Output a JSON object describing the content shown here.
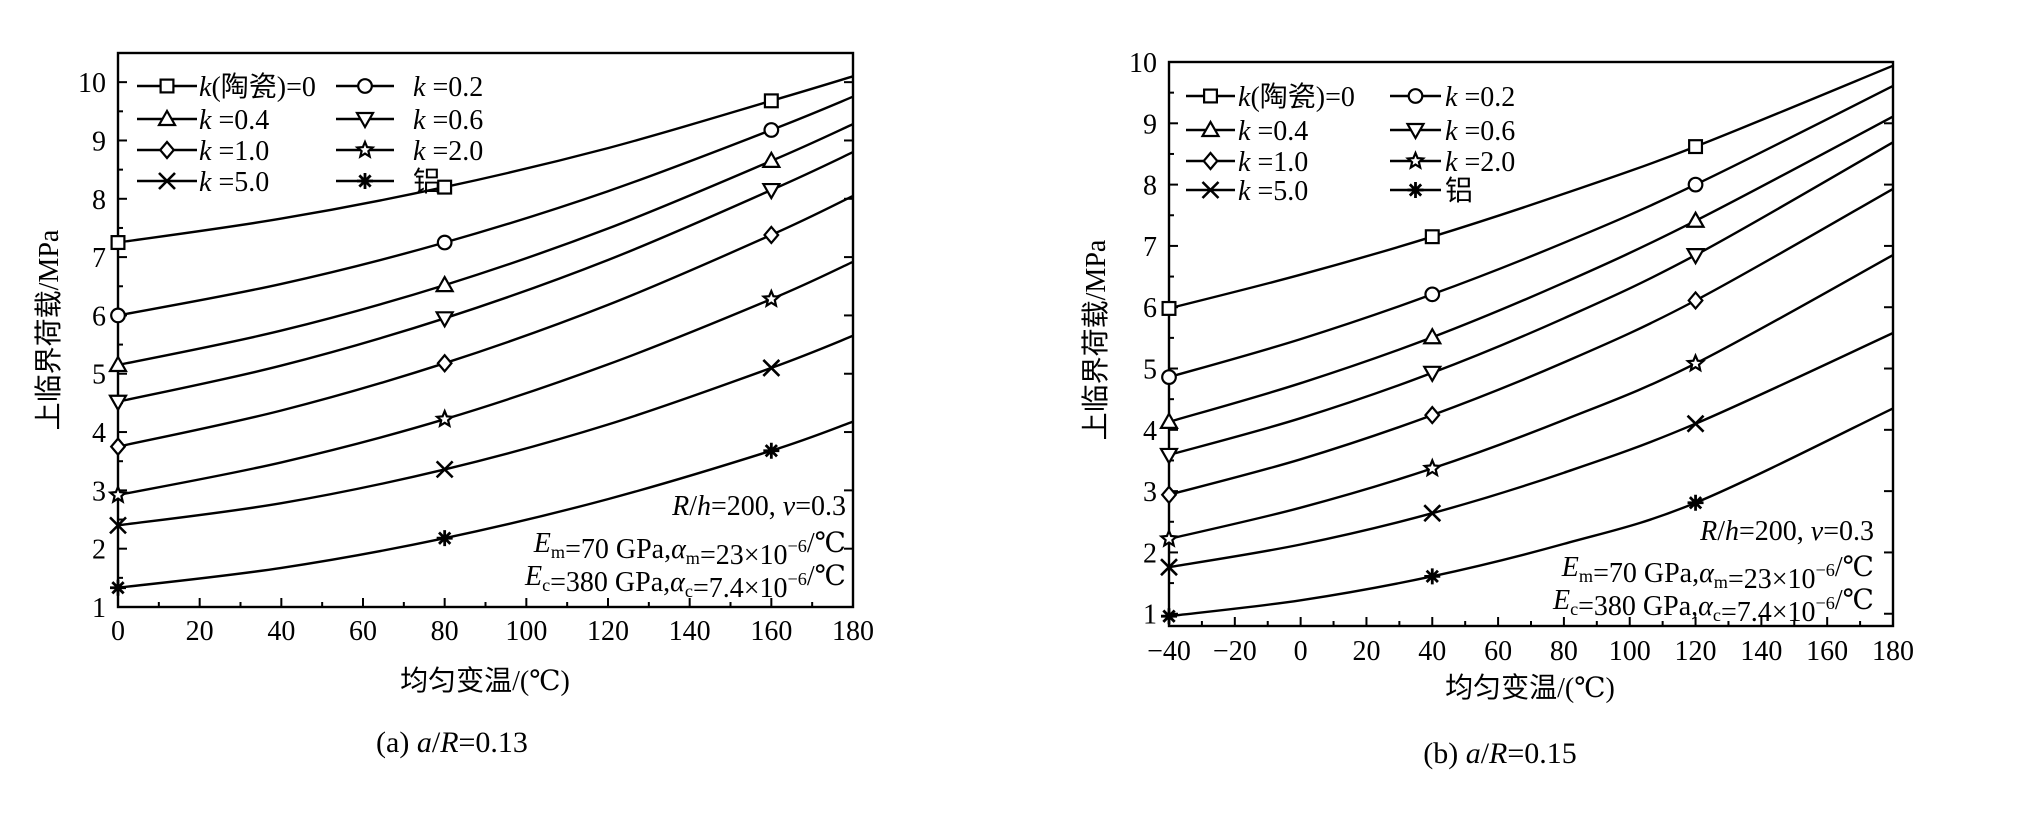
{
  "chart_data": [
    {
      "type": "line",
      "caption": "(a) a/R=0.13",
      "caption_parts": [
        {
          "t": "(a) "
        },
        {
          "t": "a",
          "i": true
        },
        {
          "t": "/"
        },
        {
          "t": "R",
          "i": true
        },
        {
          "t": "=0.13"
        }
      ],
      "xlabel": "均匀变温/(℃)",
      "ylabel": "上临界荷载/MPa",
      "xlim": [
        0,
        180
      ],
      "ylim": [
        1,
        10.5
      ],
      "xticks": [
        0,
        20,
        40,
        60,
        80,
        100,
        120,
        140,
        160,
        180
      ],
      "yticks": [
        1,
        2,
        3,
        4,
        5,
        6,
        7,
        8,
        9,
        10
      ],
      "grid": false,
      "legend_position": "top-left",
      "x": [
        0,
        40,
        80,
        120,
        160,
        180
      ],
      "marker_x": [
        0,
        80,
        160
      ],
      "series": [
        {
          "name": "k(陶瓷)=0",
          "marker": "square",
          "values": [
            7.25,
            7.66,
            8.2,
            8.87,
            9.68,
            10.1
          ]
        },
        {
          "name": "k =0.2",
          "marker": "circle",
          "values": [
            6.0,
            6.54,
            7.25,
            8.13,
            9.18,
            9.75
          ]
        },
        {
          "name": "k =0.4",
          "marker": "triangle-up",
          "values": [
            5.15,
            5.74,
            6.52,
            7.49,
            8.65,
            9.28
          ]
        },
        {
          "name": "k =0.6",
          "marker": "triangle-down",
          "values": [
            4.52,
            5.14,
            5.95,
            6.95,
            8.15,
            8.8
          ]
        },
        {
          "name": "k =1.0",
          "marker": "diamond",
          "values": [
            3.75,
            4.37,
            5.18,
            6.18,
            7.38,
            8.05
          ]
        },
        {
          "name": "k =2.0",
          "marker": "star",
          "values": [
            2.92,
            3.48,
            4.22,
            5.16,
            6.28,
            6.92
          ]
        },
        {
          "name": "k =5.0",
          "marker": "x",
          "values": [
            2.4,
            2.78,
            3.36,
            4.13,
            5.1,
            5.65
          ]
        },
        {
          "name": "铝",
          "marker": "asterisk",
          "values": [
            1.33,
            1.67,
            2.18,
            2.85,
            3.68,
            4.18
          ]
        }
      ],
      "annotations": [
        [
          {
            "t": "R",
            "i": true
          },
          {
            "t": "/"
          },
          {
            "t": "h",
            "i": true
          },
          {
            "t": "=200, "
          },
          {
            "t": "ν",
            "i": true
          },
          {
            "t": "=0.3"
          }
        ],
        [
          {
            "t": "E",
            "i": true
          },
          {
            "t": "m",
            "sub": true
          },
          {
            "t": "=70 GPa,"
          },
          {
            "t": "α",
            "i": true
          },
          {
            "t": "m",
            "sub": true
          },
          {
            "t": "=23×10"
          },
          {
            "t": "−6",
            "sup": true
          },
          {
            "t": "/℃"
          }
        ],
        [
          {
            "t": "E",
            "i": true
          },
          {
            "t": "c",
            "sub": true
          },
          {
            "t": "=380 GPa,"
          },
          {
            "t": "α",
            "i": true
          },
          {
            "t": "c",
            "sub": true
          },
          {
            "t": "=7.4×10"
          },
          {
            "t": "−6",
            "sup": true
          },
          {
            "t": "/℃"
          }
        ]
      ]
    },
    {
      "type": "line",
      "caption": "(b) a/R=0.15",
      "caption_parts": [
        {
          "t": "(b) "
        },
        {
          "t": "a",
          "i": true
        },
        {
          "t": "/"
        },
        {
          "t": "R",
          "i": true
        },
        {
          "t": "=0.15"
        }
      ],
      "xlabel": "均匀变温/(℃)",
      "ylabel": "上临界荷载/MPa",
      "xlim": [
        -40,
        180
      ],
      "ylim": [
        0.8,
        10
      ],
      "xticks": [
        -40,
        -20,
        0,
        20,
        40,
        60,
        80,
        100,
        120,
        140,
        160,
        180
      ],
      "yticks": [
        1,
        2,
        3,
        4,
        5,
        6,
        7,
        8,
        9,
        10
      ],
      "grid": false,
      "legend_position": "top-left",
      "x": [
        -40,
        0,
        40,
        80,
        120,
        180
      ],
      "marker_x": [
        -40,
        40,
        120
      ],
      "series": [
        {
          "name": "k(陶瓷)=0",
          "marker": "square",
          "values": [
            5.98,
            6.53,
            7.15,
            7.85,
            8.62,
            9.94
          ]
        },
        {
          "name": "k =0.2",
          "marker": "circle",
          "values": [
            4.86,
            5.48,
            6.21,
            7.05,
            8.0,
            9.61
          ]
        },
        {
          "name": "k =0.4",
          "marker": "triangle-up",
          "values": [
            4.13,
            4.76,
            5.51,
            6.4,
            7.41,
            9.11
          ]
        },
        {
          "name": "k =0.6",
          "marker": "triangle-down",
          "values": [
            3.59,
            4.19,
            4.93,
            5.82,
            6.85,
            8.69
          ]
        },
        {
          "name": "k =1.0",
          "marker": "diamond",
          "values": [
            2.94,
            3.52,
            4.24,
            5.1,
            6.11,
            7.93
          ]
        },
        {
          "name": "k =2.0",
          "marker": "star",
          "values": [
            2.22,
            2.73,
            3.37,
            4.16,
            5.08,
            6.85
          ]
        },
        {
          "name": "k =5.0",
          "marker": "x",
          "values": [
            1.76,
            2.13,
            2.64,
            3.3,
            4.1,
            5.58
          ]
        },
        {
          "name": "铝",
          "marker": "asterisk",
          "values": [
            0.96,
            1.22,
            1.61,
            2.14,
            2.81,
            4.35
          ]
        }
      ],
      "annotations": [
        [
          {
            "t": "R",
            "i": true
          },
          {
            "t": "/"
          },
          {
            "t": "h",
            "i": true
          },
          {
            "t": "=200, "
          },
          {
            "t": "ν",
            "i": true
          },
          {
            "t": "=0.3"
          }
        ],
        [
          {
            "t": "E",
            "i": true
          },
          {
            "t": "m",
            "sub": true
          },
          {
            "t": "=70 GPa,"
          },
          {
            "t": "α",
            "i": true
          },
          {
            "t": "m",
            "sub": true
          },
          {
            "t": "=23×10"
          },
          {
            "t": "−6",
            "sup": true
          },
          {
            "t": "/℃"
          }
        ],
        [
          {
            "t": "E",
            "i": true
          },
          {
            "t": "c",
            "sub": true
          },
          {
            "t": "=380 GPa,"
          },
          {
            "t": "α",
            "i": true
          },
          {
            "t": "c",
            "sub": true
          },
          {
            "t": "=7.4×10"
          },
          {
            "t": "−6",
            "sup": true
          },
          {
            "t": "/℃"
          }
        ]
      ]
    }
  ]
}
